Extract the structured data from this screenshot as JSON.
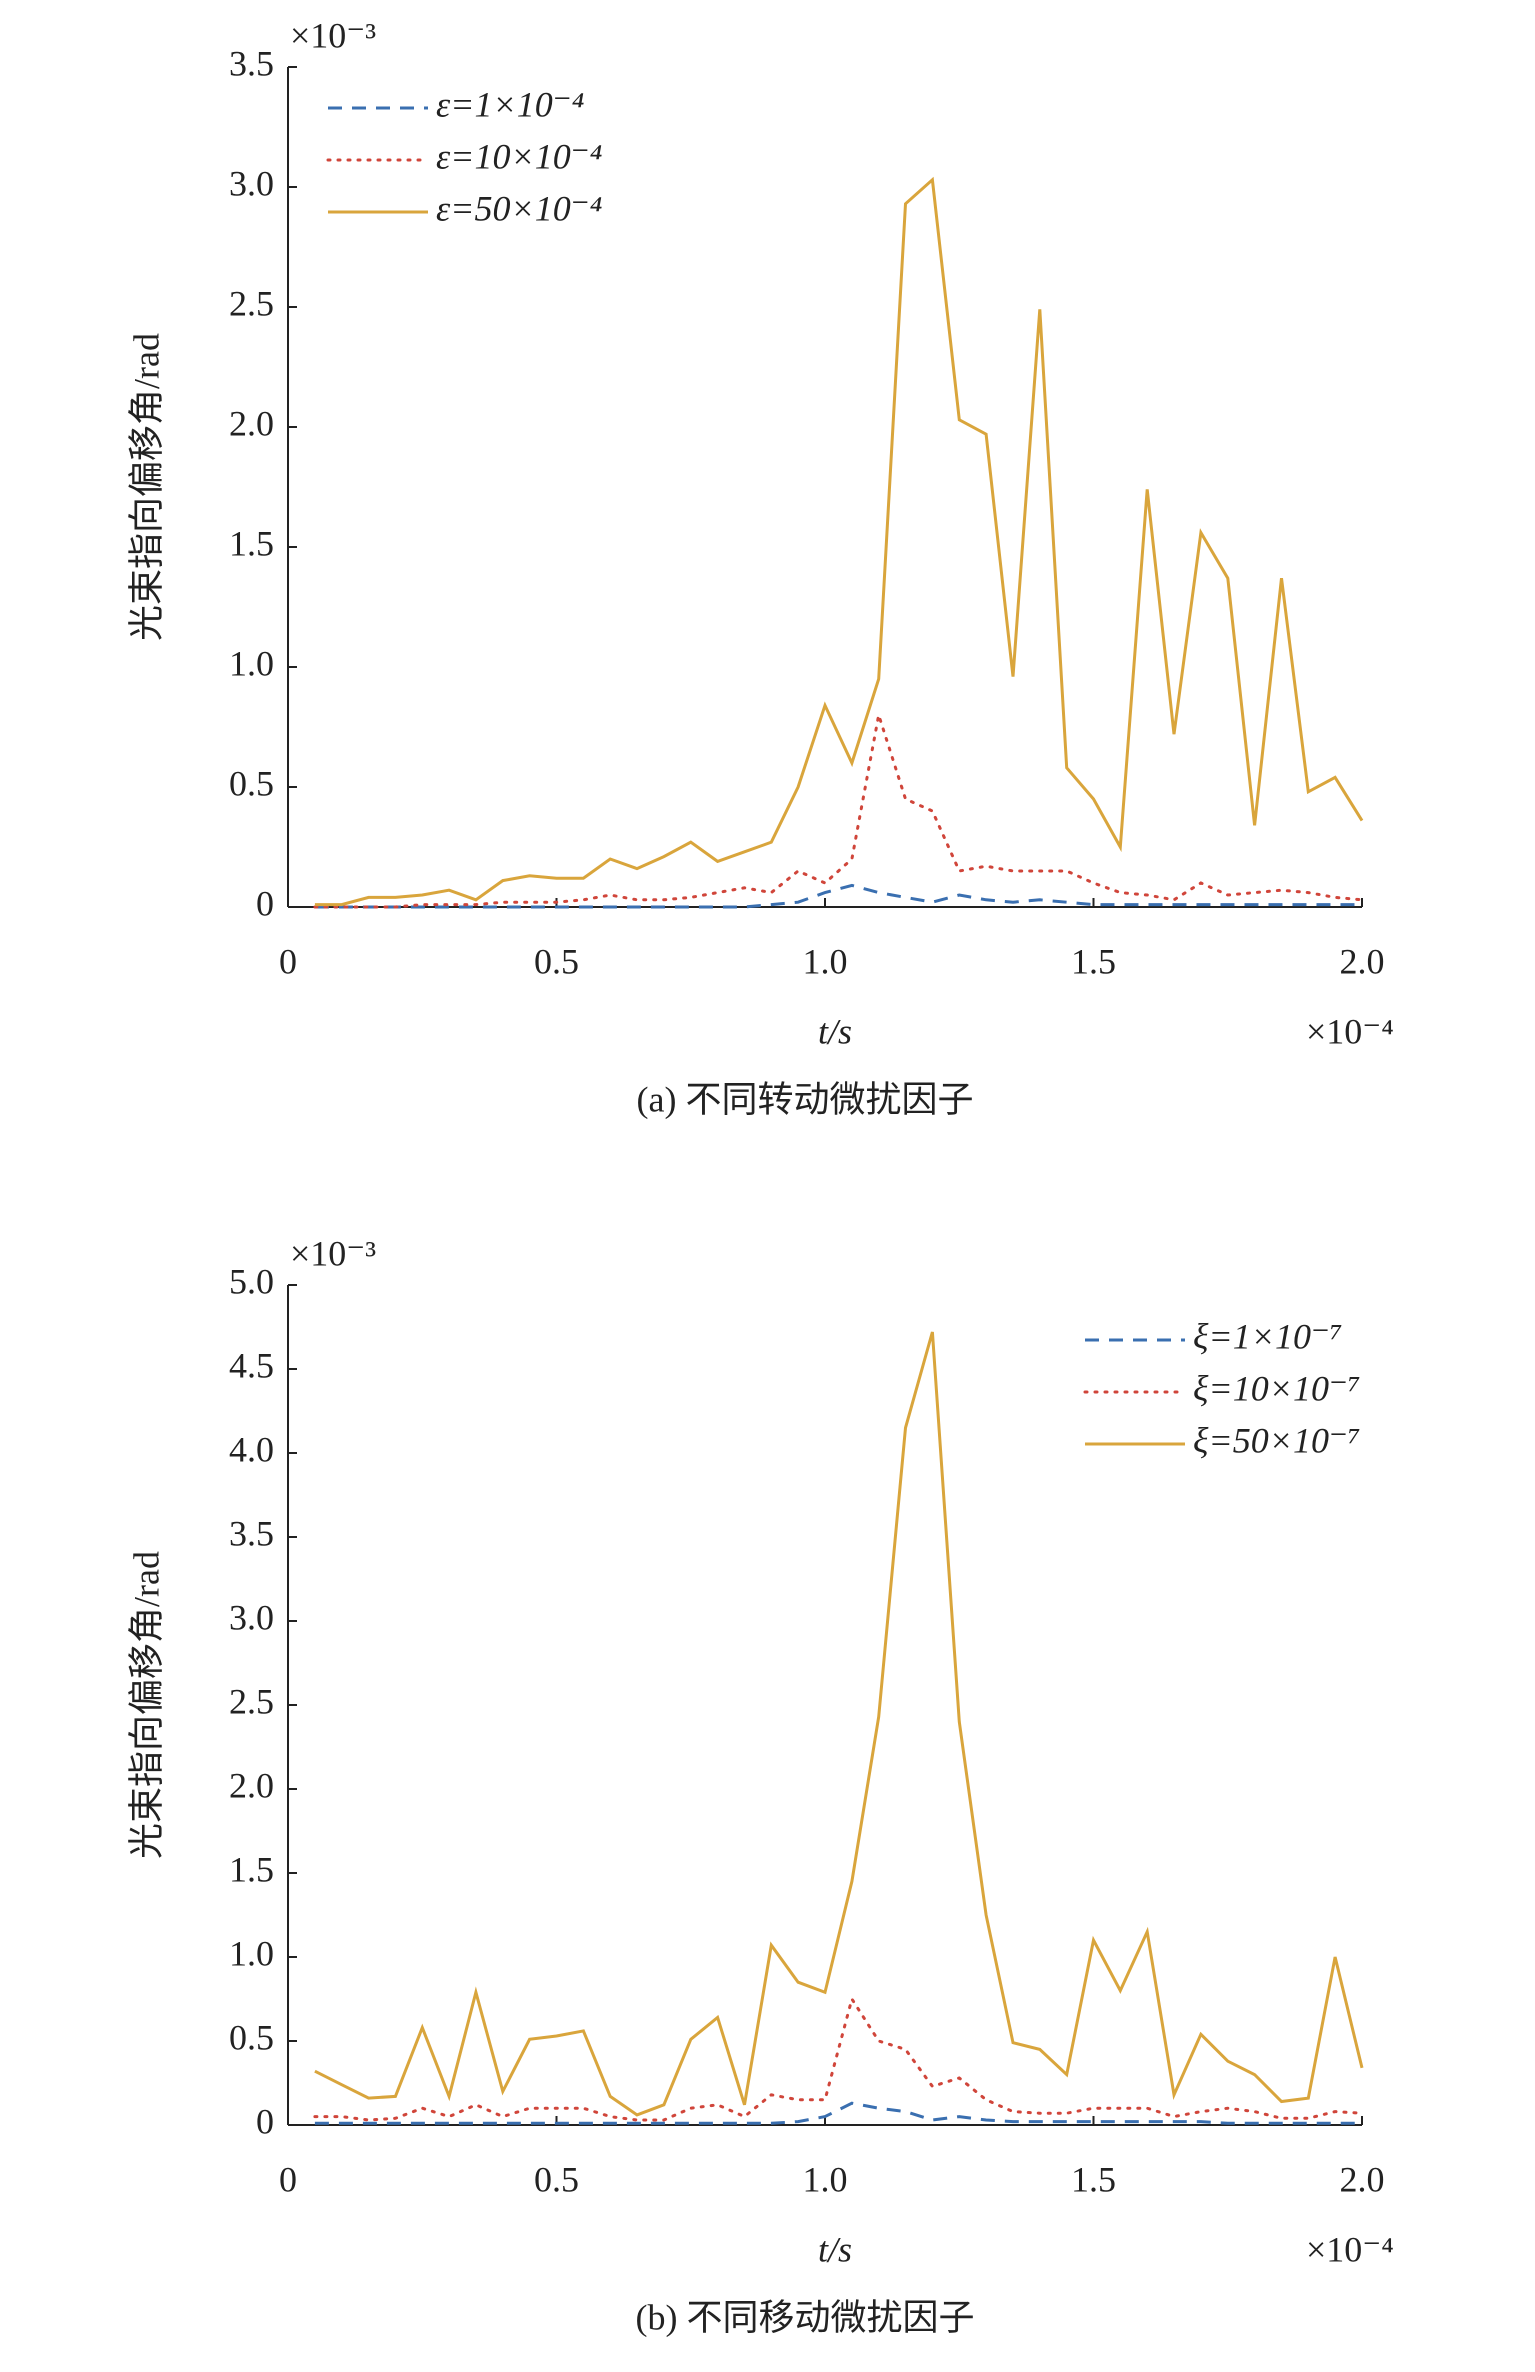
{
  "chart_data": [
    {
      "type": "line",
      "caption": "(a) 不同转动微扰因子",
      "xlabel": "t/s",
      "ylabel": "光束指向偏移角/rad",
      "x_offset_label": "×10⁻⁴",
      "y_offset_label": "×10⁻³",
      "legend": "upper left",
      "x": [
        0.05,
        0.1,
        0.15,
        0.2,
        0.25,
        0.3,
        0.35,
        0.4,
        0.45,
        0.5,
        0.55,
        0.6,
        0.65,
        0.7,
        0.75,
        0.8,
        0.85,
        0.9,
        0.95,
        1.0,
        1.05,
        1.1,
        1.15,
        1.2,
        1.25,
        1.3,
        1.35,
        1.4,
        1.45,
        1.5,
        1.55,
        1.6,
        1.65,
        1.7,
        1.75,
        1.8,
        1.85,
        1.9,
        1.95,
        2.0
      ],
      "xlim": [
        0,
        2.0
      ],
      "xticks": [
        0,
        0.5,
        {
          "value": 1,
          "label": "1.0"
        },
        1.5,
        {
          "value": 2,
          "label": "2.0"
        }
      ],
      "ylim": [
        0,
        3.5
      ],
      "yticks": [
        0,
        0.5,
        {
          "value": 1,
          "label": "1.0"
        },
        1.5,
        {
          "value": 2,
          "label": "2.0"
        },
        2.5,
        {
          "value": 3,
          "label": "3.0"
        },
        3.5
      ],
      "series": [
        {
          "name": "ε=1×10⁻⁴",
          "color": "#3a6fb0",
          "linestyle": "dashed",
          "values": [
            0,
            0,
            0,
            0,
            0,
            0,
            0,
            0,
            0,
            0,
            0,
            0,
            0,
            0,
            0,
            0,
            0,
            0.01,
            0.02,
            0.06,
            0.09,
            0.06,
            0.04,
            0.02,
            0.05,
            0.03,
            0.02,
            0.03,
            0.02,
            0.01,
            0.01,
            0.01,
            0.01,
            0.01,
            0.01,
            0.01,
            0.01,
            0.01,
            0.01,
            0.01
          ]
        },
        {
          "name": "ε=10×10⁻⁴",
          "color": "#d0453a",
          "linestyle": "dotted",
          "values": [
            0,
            0,
            0,
            0,
            0.01,
            0.01,
            0.01,
            0.02,
            0.02,
            0.02,
            0.03,
            0.05,
            0.03,
            0.03,
            0.04,
            0.06,
            0.08,
            0.06,
            0.15,
            0.1,
            0.2,
            0.8,
            0.45,
            0.4,
            0.15,
            0.17,
            0.15,
            0.15,
            0.15,
            0.1,
            0.06,
            0.05,
            0.03,
            0.1,
            0.05,
            0.06,
            0.07,
            0.06,
            0.04,
            0.03
          ]
        },
        {
          "name": "ε=50×10⁻⁴",
          "color": "#d9a53c",
          "linestyle": "solid",
          "values": [
            0.01,
            0.01,
            0.04,
            0.04,
            0.05,
            0.07,
            0.03,
            0.11,
            0.13,
            0.12,
            0.12,
            0.2,
            0.16,
            0.21,
            0.27,
            0.19,
            0.23,
            0.27,
            0.5,
            0.84,
            0.6,
            0.95,
            2.93,
            3.03,
            2.03,
            1.97,
            0.96,
            2.49,
            0.58,
            0.45,
            0.25,
            1.74,
            0.72,
            1.56,
            1.37,
            0.34,
            1.37,
            0.48,
            0.54,
            0.36
          ]
        }
      ]
    },
    {
      "type": "line",
      "caption": "(b) 不同移动微扰因子",
      "xlabel": "t/s",
      "ylabel": "光束指向偏移角/rad",
      "x_offset_label": "×10⁻⁴",
      "y_offset_label": "×10⁻³",
      "legend": "upper right",
      "x": [
        0.05,
        0.1,
        0.15,
        0.2,
        0.25,
        0.3,
        0.35,
        0.4,
        0.45,
        0.5,
        0.55,
        0.6,
        0.65,
        0.7,
        0.75,
        0.8,
        0.85,
        0.9,
        0.95,
        1.0,
        1.05,
        1.1,
        1.15,
        1.2,
        1.25,
        1.3,
        1.35,
        1.4,
        1.45,
        1.5,
        1.55,
        1.6,
        1.65,
        1.7,
        1.75,
        1.8,
        1.85,
        1.9,
        1.95,
        2.0
      ],
      "xlim": [
        0,
        2.0
      ],
      "xticks": [
        0,
        0.5,
        {
          "value": 1,
          "label": "1.0"
        },
        1.5,
        {
          "value": 2,
          "label": "2.0"
        }
      ],
      "ylim": [
        0,
        5.0
      ],
      "yticks": [
        0,
        0.5,
        {
          "value": 1,
          "label": "1.0"
        },
        1.5,
        {
          "value": 2,
          "label": "2.0"
        },
        2.5,
        {
          "value": 3,
          "label": "3.0"
        },
        3.5,
        {
          "value": 4,
          "label": "4.0"
        },
        4.5,
        {
          "value": 5,
          "label": "5.0"
        }
      ],
      "series": [
        {
          "name": "ξ=1×10⁻⁷",
          "color": "#3a6fb0",
          "linestyle": "dashed",
          "values": [
            0.01,
            0.01,
            0.01,
            0.01,
            0.01,
            0.01,
            0.01,
            0.01,
            0.01,
            0.01,
            0.01,
            0.01,
            0.01,
            0.01,
            0.01,
            0.01,
            0.01,
            0.01,
            0.02,
            0.05,
            0.13,
            0.1,
            0.08,
            0.03,
            0.05,
            0.03,
            0.02,
            0.02,
            0.02,
            0.02,
            0.02,
            0.02,
            0.02,
            0.02,
            0.01,
            0.01,
            0.01,
            0.01,
            0.01,
            0.01
          ]
        },
        {
          "name": "ξ=10×10⁻⁷",
          "color": "#d0453a",
          "linestyle": "dotted",
          "values": [
            0.05,
            0.05,
            0.03,
            0.04,
            0.1,
            0.05,
            0.12,
            0.05,
            0.1,
            0.1,
            0.1,
            0.05,
            0.03,
            0.03,
            0.1,
            0.12,
            0.05,
            0.18,
            0.15,
            0.15,
            0.75,
            0.5,
            0.45,
            0.23,
            0.28,
            0.15,
            0.08,
            0.07,
            0.07,
            0.1,
            0.1,
            0.1,
            0.05,
            0.08,
            0.1,
            0.08,
            0.04,
            0.04,
            0.08,
            0.07
          ]
        },
        {
          "name": "ξ=50×10⁻⁷",
          "color": "#d9a53c",
          "linestyle": "solid",
          "values": [
            0.32,
            0.24,
            0.16,
            0.17,
            0.58,
            0.17,
            0.79,
            0.2,
            0.51,
            0.53,
            0.56,
            0.17,
            0.06,
            0.12,
            0.51,
            0.64,
            0.12,
            1.07,
            0.85,
            0.79,
            1.45,
            2.43,
            4.15,
            4.72,
            2.4,
            1.25,
            0.49,
            0.45,
            0.3,
            1.1,
            0.8,
            1.15,
            0.18,
            0.54,
            0.38,
            0.3,
            0.14,
            0.16,
            1.0,
            0.34
          ]
        }
      ]
    }
  ]
}
